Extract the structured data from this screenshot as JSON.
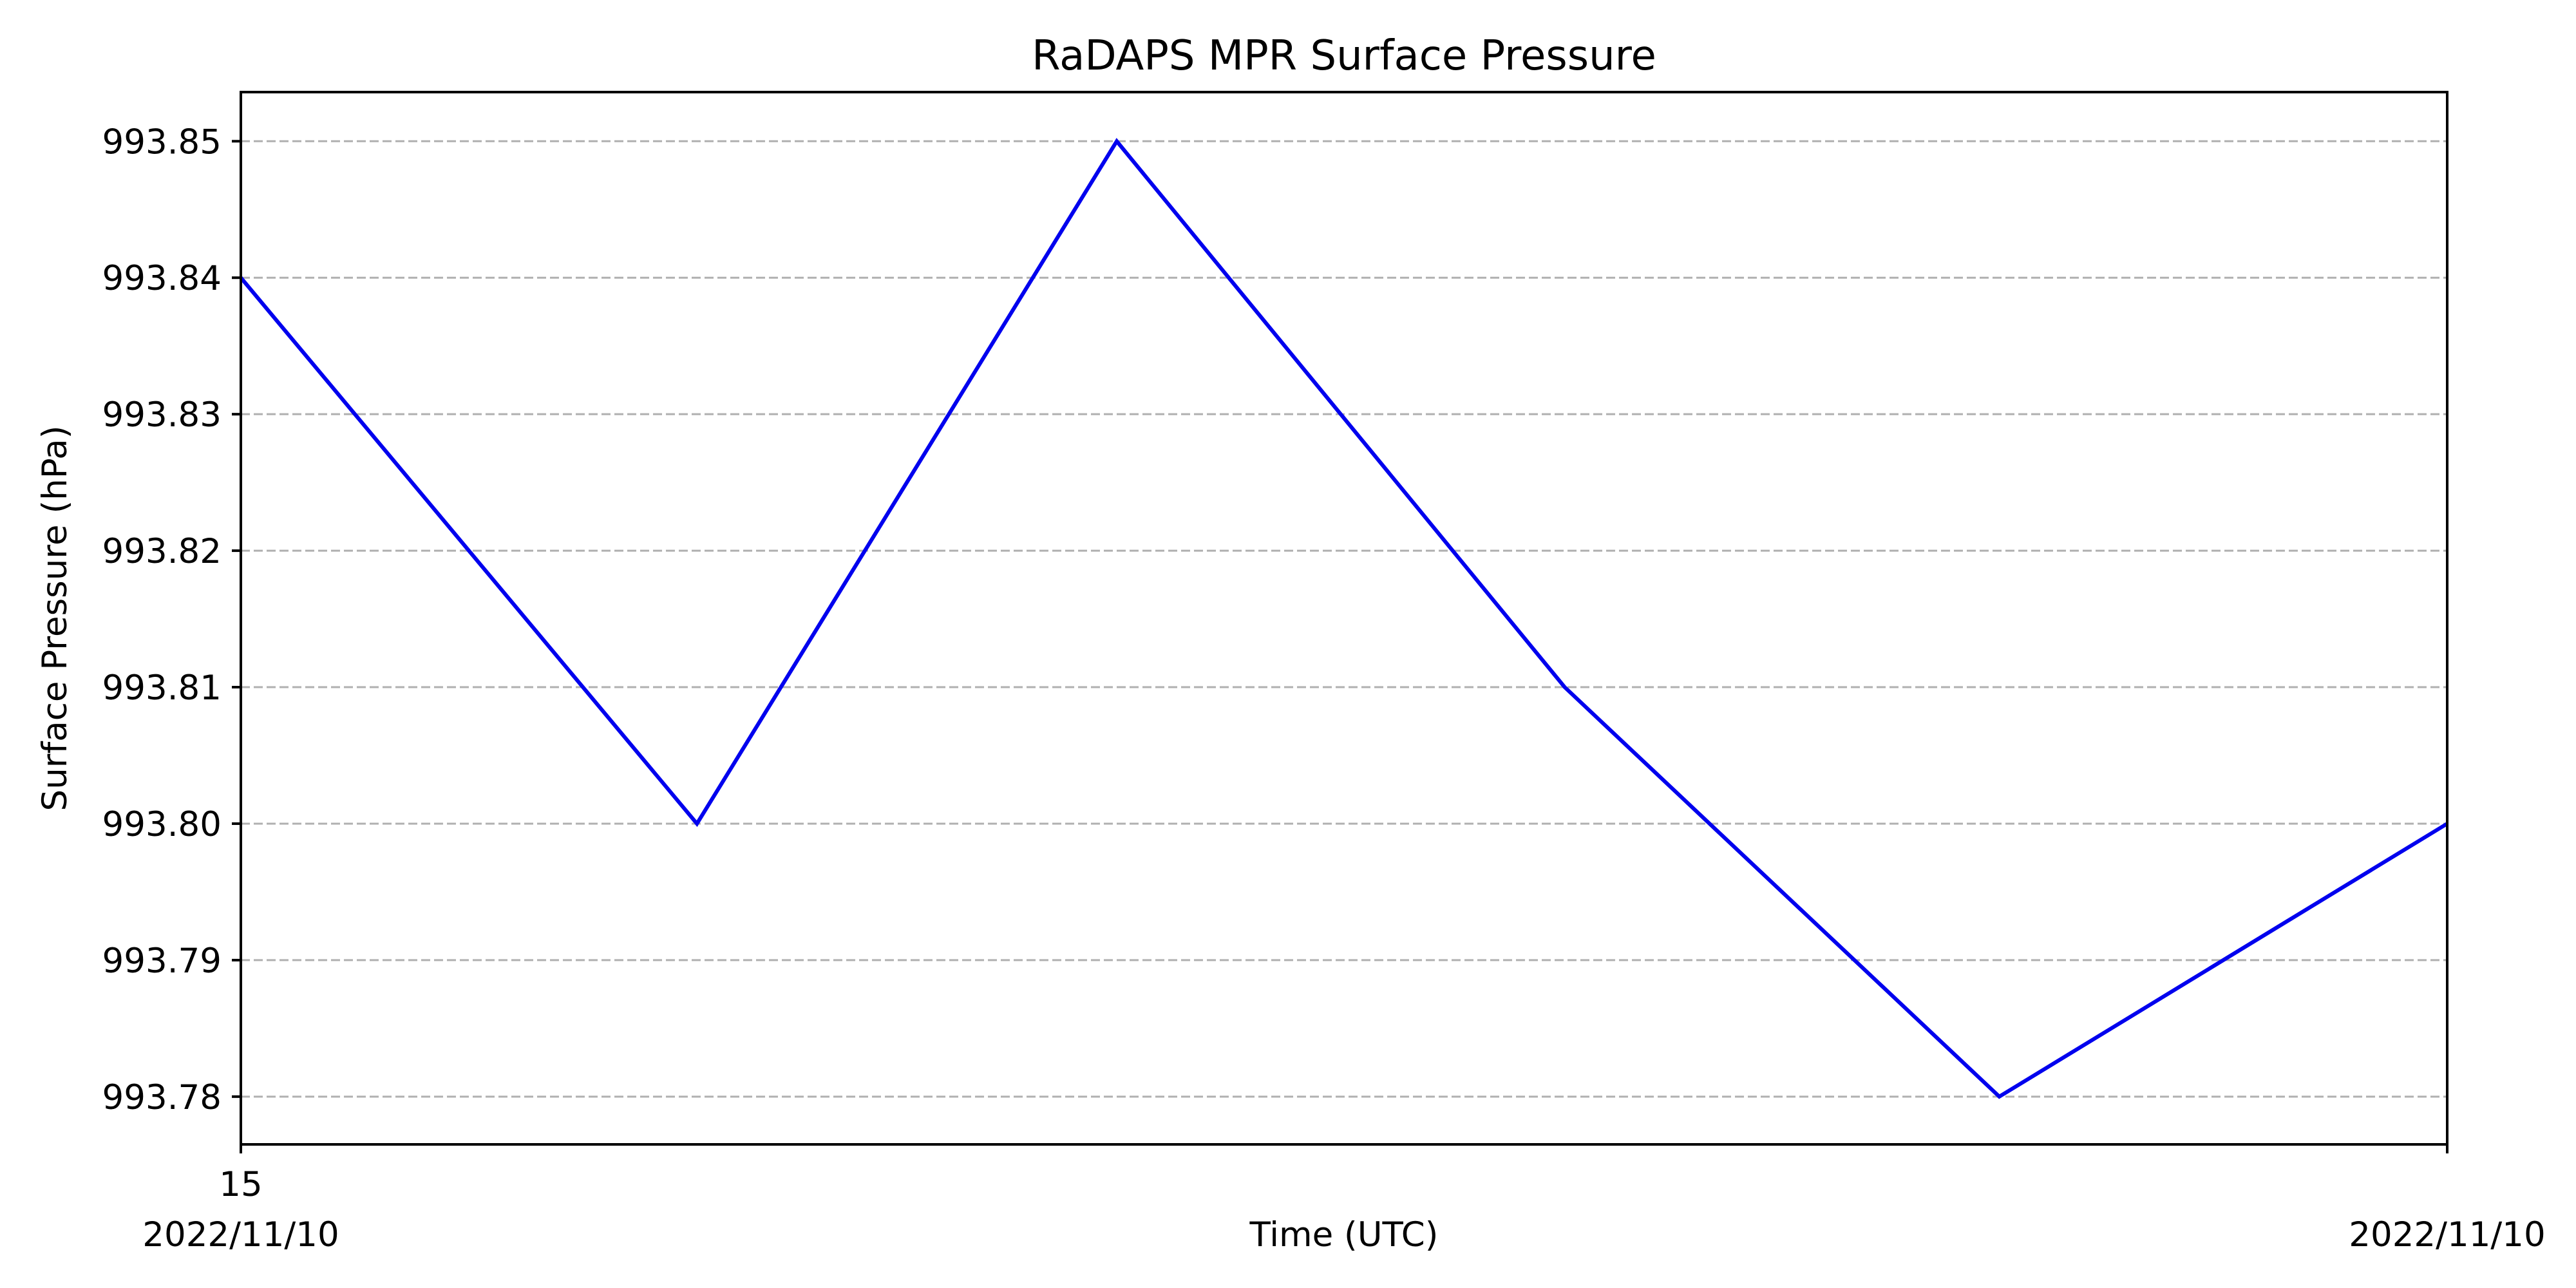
{
  "chart_data": {
    "type": "line",
    "title": "RaDAPS MPR Surface Pressure",
    "xlabel": "Time (UTC)",
    "ylabel": "Surface Pressure (hPa)",
    "x_tick_labels": [
      {
        "lines": [
          "15",
          "2022/11/10"
        ]
      },
      {
        "lines": [
          "",
          "2022/11/10"
        ]
      }
    ],
    "ylim": [
      993.7765,
      993.8536
    ],
    "yticks": [
      993.78,
      993.79,
      993.8,
      993.81,
      993.82,
      993.83,
      993.84,
      993.85
    ],
    "ytick_labels": [
      "993.78",
      "993.79",
      "993.80",
      "993.81",
      "993.82",
      "993.83",
      "993.84",
      "993.85"
    ],
    "grid": {
      "y": true,
      "x": false,
      "style": "dashed"
    },
    "series": [
      {
        "color": "#0000ee",
        "x": [
          0,
          0.2067,
          0.397,
          0.6,
          0.797,
          1.0
        ],
        "values": [
          993.84,
          993.8,
          993.85,
          993.81,
          993.78,
          993.8
        ]
      }
    ]
  }
}
